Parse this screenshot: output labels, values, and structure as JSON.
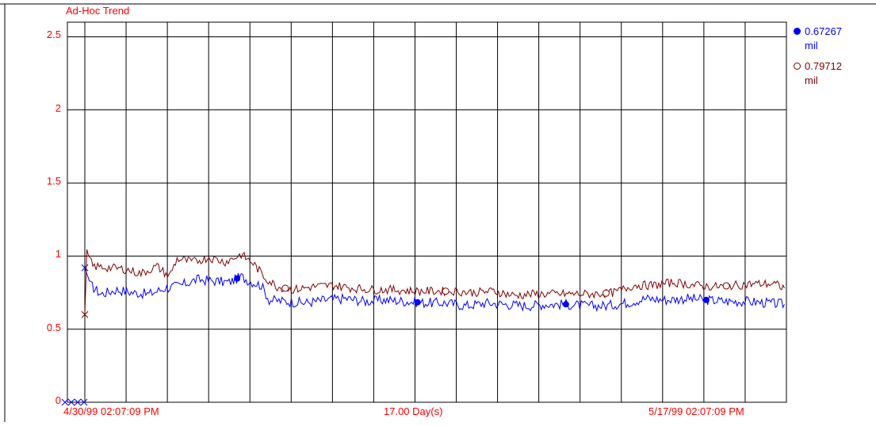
{
  "chart_data": {
    "type": "line",
    "title": "Ad-Hoc Trend",
    "ylim": [
      0,
      2.6
    ],
    "yticks": [
      0,
      0.5,
      1,
      1.5,
      2,
      2.5
    ],
    "ytick_labels": [
      "0",
      "0.5",
      "1",
      "1.5",
      "2",
      "2.5"
    ],
    "xlim": [
      "4/30/99 02:07:09 PM",
      "5/17/99 02:07:09 PM"
    ],
    "x_labels": {
      "start": "4/30/99 02:07:09 PM",
      "span": "17.00 Day(s)",
      "end": "5/17/99 02:07:09 PM"
    },
    "grid": true,
    "legend_position": "right",
    "series": [
      {
        "value": "0.67267",
        "unit": "mil",
        "color": "#0000ff",
        "marker": "filled-circle",
        "points": [
          [
            0.0,
            0.92
          ],
          [
            0.15,
            0.8
          ],
          [
            0.4,
            0.74
          ],
          [
            0.8,
            0.77
          ],
          [
            1.2,
            0.75
          ],
          [
            1.6,
            0.74
          ],
          [
            2.0,
            0.78
          ],
          [
            2.4,
            0.8
          ],
          [
            2.8,
            0.84
          ],
          [
            3.2,
            0.83
          ],
          [
            3.6,
            0.82
          ],
          [
            3.9,
            0.86
          ],
          [
            4.1,
            0.83
          ],
          [
            4.4,
            0.8
          ],
          [
            4.6,
            0.7
          ],
          [
            5.0,
            0.69
          ],
          [
            5.5,
            0.68
          ],
          [
            6.0,
            0.7
          ],
          [
            6.5,
            0.71
          ],
          [
            7.0,
            0.69
          ],
          [
            7.5,
            0.7
          ],
          [
            8.0,
            0.69
          ],
          [
            8.5,
            0.68
          ],
          [
            9.0,
            0.68
          ],
          [
            9.5,
            0.66
          ],
          [
            10.0,
            0.68
          ],
          [
            10.5,
            0.67
          ],
          [
            11.0,
            0.66
          ],
          [
            11.5,
            0.67
          ],
          [
            12.0,
            0.67
          ],
          [
            12.5,
            0.66
          ],
          [
            13.0,
            0.66
          ],
          [
            13.5,
            0.68
          ],
          [
            14.0,
            0.71
          ],
          [
            14.5,
            0.7
          ],
          [
            15.0,
            0.71
          ],
          [
            15.5,
            0.7
          ],
          [
            16.0,
            0.69
          ],
          [
            16.5,
            0.69
          ],
          [
            17.0,
            0.68
          ],
          [
            17.45,
            0.67
          ]
        ]
      },
      {
        "value": "0.79712",
        "unit": "mil",
        "color": "#800000",
        "marker": "open-circle",
        "points": [
          [
            0.0,
            0.6
          ],
          [
            0.05,
            1.02
          ],
          [
            0.2,
            0.93
          ],
          [
            0.6,
            0.92
          ],
          [
            1.0,
            0.91
          ],
          [
            1.4,
            0.88
          ],
          [
            1.8,
            0.93
          ],
          [
            2.1,
            0.86
          ],
          [
            2.3,
            0.98
          ],
          [
            2.7,
            0.96
          ],
          [
            3.1,
            0.99
          ],
          [
            3.5,
            0.96
          ],
          [
            3.9,
            1.01
          ],
          [
            4.2,
            0.95
          ],
          [
            4.5,
            0.85
          ],
          [
            4.8,
            0.79
          ],
          [
            5.2,
            0.77
          ],
          [
            5.7,
            0.79
          ],
          [
            6.2,
            0.8
          ],
          [
            6.7,
            0.78
          ],
          [
            7.2,
            0.77
          ],
          [
            7.7,
            0.77
          ],
          [
            8.2,
            0.76
          ],
          [
            8.7,
            0.76
          ],
          [
            9.2,
            0.76
          ],
          [
            9.7,
            0.75
          ],
          [
            10.2,
            0.76
          ],
          [
            10.7,
            0.73
          ],
          [
            11.2,
            0.74
          ],
          [
            11.7,
            0.74
          ],
          [
            12.2,
            0.74
          ],
          [
            12.7,
            0.74
          ],
          [
            13.2,
            0.75
          ],
          [
            13.7,
            0.8
          ],
          [
            14.2,
            0.8
          ],
          [
            14.7,
            0.82
          ],
          [
            15.2,
            0.8
          ],
          [
            15.7,
            0.79
          ],
          [
            16.2,
            0.8
          ],
          [
            16.7,
            0.81
          ],
          [
            17.2,
            0.81
          ],
          [
            17.45,
            0.78
          ]
        ]
      }
    ]
  }
}
